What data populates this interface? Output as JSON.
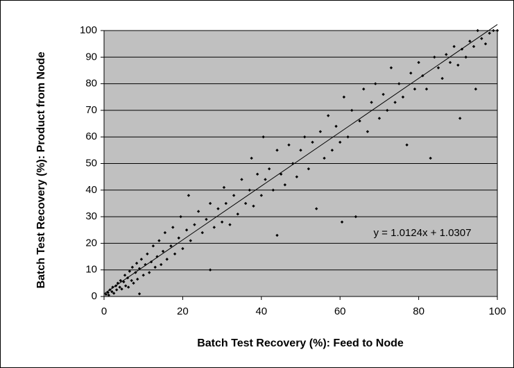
{
  "chart_data": {
    "type": "scatter",
    "x_label": "Batch Test Recovery (%): Feed to Node",
    "y_label": "Batch Test Recovery (%): Product from Node",
    "series": [
      {
        "color": "#000000",
        "x": [
          0.5,
          1,
          1.2,
          1.5,
          2,
          2.2,
          2.5,
          3,
          3.2,
          3.5,
          4,
          4.2,
          4.5,
          5,
          5.3,
          5.5,
          6,
          6.2,
          6.5,
          7,
          7.2,
          7.5,
          8,
          8.3,
          8.5,
          9,
          9,
          9.5,
          10,
          10.5,
          11,
          11.5,
          12,
          12.5,
          13,
          13.5,
          14,
          14.5,
          15,
          15.5,
          16,
          17,
          17.5,
          18,
          19,
          19.5,
          20,
          21,
          21.5,
          22,
          23,
          24,
          25,
          26,
          27,
          27,
          28,
          29,
          30,
          30.5,
          31,
          32,
          33,
          34,
          35,
          36,
          37,
          37.5,
          38,
          39,
          40,
          40.5,
          41,
          42,
          43,
          44,
          44,
          45,
          46,
          47,
          48,
          49,
          50,
          51,
          52,
          53,
          54,
          55,
          56,
          57,
          58,
          59,
          60,
          60.5,
          61,
          62,
          63,
          64,
          65,
          66,
          67,
          68,
          69,
          70,
          71,
          72,
          73,
          74,
          75,
          76,
          77,
          78,
          79,
          80,
          81,
          82,
          83,
          84,
          85,
          86,
          87,
          88,
          89,
          90,
          90.5,
          91,
          92,
          93,
          94,
          94.5,
          95,
          96,
          97,
          98,
          99,
          100
        ],
        "y": [
          0.8,
          1.5,
          0.5,
          2.5,
          1.8,
          3.5,
          1.2,
          4,
          2.5,
          5,
          3.5,
          6,
          2.8,
          5.5,
          8,
          4,
          7,
          3.5,
          9.5,
          6,
          11,
          5,
          9,
          12.5,
          6.5,
          1,
          10.5,
          14,
          8,
          12,
          16,
          9,
          13,
          19,
          11,
          15,
          21,
          12,
          17,
          24,
          14,
          19,
          26,
          16,
          22,
          30,
          18,
          25,
          38,
          21,
          27,
          32,
          24,
          29,
          10,
          35,
          26,
          33,
          28,
          41,
          35,
          27,
          38,
          31,
          44,
          35,
          40,
          52,
          34,
          46,
          38,
          60,
          44,
          48,
          40,
          23,
          55,
          46,
          42,
          57,
          50,
          45,
          55,
          60,
          48,
          58,
          33,
          62,
          52,
          68,
          55,
          64,
          58,
          28,
          75,
          60,
          70,
          30,
          66,
          78,
          62,
          73,
          80,
          67,
          76,
          70,
          86,
          73,
          80,
          75,
          57,
          84,
          78,
          88,
          83,
          78,
          52,
          90,
          86,
          82,
          91,
          88,
          94,
          87,
          67,
          93,
          90,
          96,
          94,
          78,
          100,
          97,
          95,
          99,
          100,
          100
        ]
      }
    ],
    "trendline": {
      "slope": 1.0124,
      "intercept": 1.0307,
      "label": "y = 1.0124x + 1.0307"
    },
    "xlim": [
      0,
      100
    ],
    "ylim": [
      0,
      100
    ],
    "xticks": [
      0,
      20,
      40,
      60,
      80,
      100
    ],
    "yticks": [
      0,
      10,
      20,
      30,
      40,
      50,
      60,
      70,
      80,
      90,
      100
    ],
    "grid": true,
    "plot_background": "#c0c0c0"
  }
}
